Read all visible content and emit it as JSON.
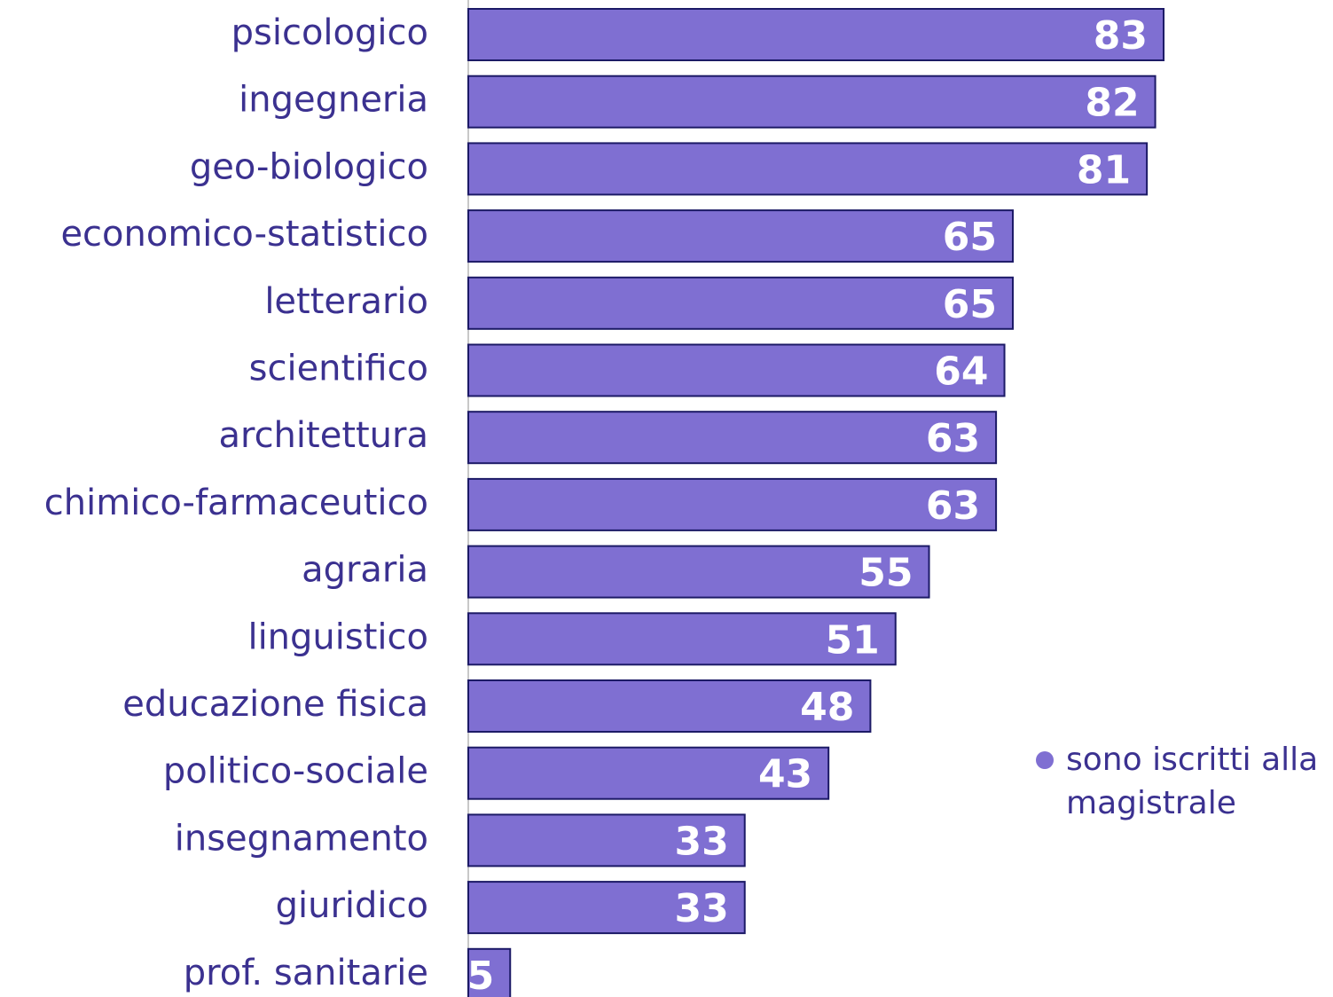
{
  "chart_data": {
    "type": "bar",
    "orientation": "horizontal",
    "categories": [
      "psicologico",
      "ingegneria",
      "geo-biologico",
      "economico-statistico",
      "letterario",
      "scientifico",
      "architettura",
      "chimico-farmaceutico",
      "agraria",
      "linguistico",
      "educazione fisica",
      "politico-sociale",
      "insegnamento",
      "giuridico",
      "prof. sanitarie"
    ],
    "series": [
      {
        "name": "sono iscritti alla magistrale",
        "color": "#7f6fd2",
        "values": [
          83,
          82,
          81,
          65,
          65,
          64,
          63,
          63,
          55,
          51,
          48,
          43,
          33,
          33,
          5
        ]
      }
    ],
    "xlim": [
      0,
      100
    ],
    "legend": "right"
  }
}
